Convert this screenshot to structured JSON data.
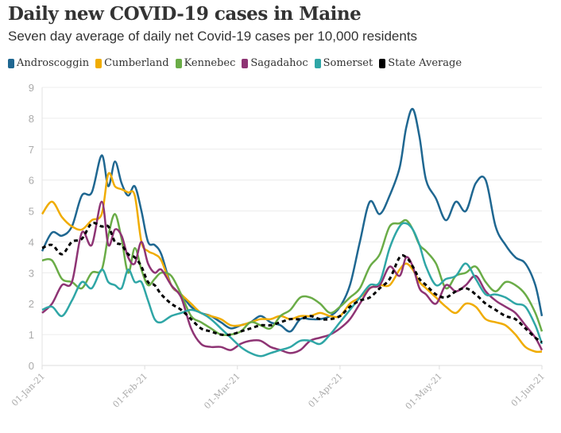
{
  "header": {
    "title": "Daily new COVID-19 cases in Maine",
    "subtitle": "Seven day average of daily net Covid-19 cases per 10,000 residents"
  },
  "chart_data": {
    "type": "line",
    "title": "Daily new COVID-19 cases in Maine",
    "subtitle": "Seven day average of daily net Covid-19 cases per 10,000 residents",
    "xlabel": "",
    "ylabel": "",
    "ylim": [
      0,
      9
    ],
    "yticks": [
      "0",
      "1",
      "2",
      "3",
      "4",
      "5",
      "6",
      "7",
      "8",
      "9"
    ],
    "xlim_days": [
      0,
      151
    ],
    "xticks": [
      {
        "day": 0,
        "label": "01-Jan-21"
      },
      {
        "day": 31,
        "label": "01-Feb-21"
      },
      {
        "day": 59,
        "label": "01-Mar-21"
      },
      {
        "day": 90,
        "label": "01-Apr-21"
      },
      {
        "day": 120,
        "label": "01-May-21"
      },
      {
        "day": 151,
        "label": "01-Jun-21"
      }
    ],
    "grid": true,
    "legend": "top-left",
    "x_days": [
      0,
      3,
      6,
      9,
      12,
      15,
      18,
      20,
      22,
      24,
      26,
      28,
      30,
      32,
      34,
      36,
      39,
      42,
      45,
      48,
      51,
      54,
      57,
      60,
      63,
      66,
      69,
      72,
      75,
      78,
      81,
      84,
      87,
      90,
      93,
      96,
      99,
      102,
      105,
      108,
      110,
      112,
      114,
      116,
      119,
      122,
      125,
      128,
      131,
      134,
      137,
      140,
      143,
      146,
      149,
      151
    ],
    "series": [
      {
        "name": "Androscoggin",
        "color": "#1f6791",
        "dashed": false,
        "values": [
          3.7,
          4.3,
          4.2,
          4.5,
          5.5,
          5.6,
          6.8,
          5.8,
          6.6,
          5.9,
          5.5,
          5.8,
          5.0,
          4.0,
          3.9,
          3.6,
          2.6,
          2.3,
          1.9,
          1.7,
          1.6,
          1.4,
          1.2,
          1.3,
          1.4,
          1.6,
          1.4,
          1.3,
          1.1,
          1.5,
          1.5,
          1.5,
          1.6,
          1.9,
          2.6,
          4.0,
          5.3,
          4.9,
          5.5,
          6.4,
          7.7,
          8.3,
          7.4,
          6.0,
          5.4,
          4.7,
          5.3,
          5.0,
          5.9,
          6.0,
          4.5,
          3.9,
          3.5,
          3.3,
          2.6,
          1.6
        ]
      },
      {
        "name": "Cumberland",
        "color": "#f0ac00",
        "dashed": false,
        "values": [
          4.9,
          5.3,
          4.8,
          4.5,
          4.4,
          4.7,
          4.9,
          6.2,
          5.8,
          5.7,
          5.6,
          5.5,
          4.0,
          3.7,
          3.6,
          3.4,
          2.6,
          2.3,
          2.0,
          1.7,
          1.6,
          1.5,
          1.3,
          1.3,
          1.4,
          1.5,
          1.5,
          1.6,
          1.5,
          1.6,
          1.6,
          1.7,
          1.6,
          1.6,
          2.0,
          2.2,
          2.5,
          2.6,
          2.6,
          3.1,
          3.3,
          3.1,
          2.7,
          2.5,
          2.2,
          1.9,
          1.7,
          2.0,
          1.9,
          1.5,
          1.4,
          1.3,
          1.0,
          0.6,
          0.45,
          0.45
        ]
      },
      {
        "name": "Kennebec",
        "color": "#6aac47",
        "dashed": false,
        "values": [
          3.4,
          3.4,
          2.8,
          2.7,
          2.5,
          3.0,
          3.1,
          4.2,
          4.9,
          4.1,
          3.0,
          3.8,
          3.1,
          2.6,
          2.8,
          3.0,
          2.9,
          2.3,
          1.6,
          1.4,
          1.2,
          1.0,
          1.0,
          1.1,
          1.4,
          1.3,
          1.2,
          1.6,
          1.8,
          2.2,
          2.2,
          2.0,
          1.7,
          1.9,
          2.2,
          2.5,
          3.2,
          3.6,
          4.5,
          4.6,
          4.7,
          4.4,
          3.9,
          3.7,
          3.3,
          2.5,
          2.9,
          3.0,
          3.2,
          2.7,
          2.4,
          2.7,
          2.6,
          2.3,
          1.7,
          1.1
        ]
      },
      {
        "name": "Sagadahoc",
        "color": "#8e3474",
        "dashed": false,
        "values": [
          1.7,
          2.0,
          2.6,
          2.7,
          4.3,
          3.9,
          5.3,
          3.9,
          4.4,
          4.2,
          3.5,
          3.3,
          4.0,
          3.3,
          3.0,
          3.1,
          2.6,
          2.2,
          1.2,
          0.7,
          0.6,
          0.6,
          0.5,
          0.7,
          0.8,
          0.8,
          0.6,
          0.5,
          0.4,
          0.5,
          0.8,
          0.9,
          1.0,
          1.2,
          1.5,
          2.0,
          2.5,
          2.6,
          3.2,
          2.9,
          3.5,
          3.2,
          2.5,
          2.3,
          2.0,
          2.6,
          2.4,
          2.6,
          2.9,
          2.4,
          2.1,
          1.9,
          1.7,
          1.3,
          0.9,
          0.5
        ]
      },
      {
        "name": "Somerset",
        "color": "#2fa6a6",
        "dashed": false,
        "values": [
          1.8,
          1.9,
          1.6,
          2.1,
          2.7,
          2.5,
          3.1,
          2.7,
          2.6,
          2.5,
          3.1,
          2.7,
          2.7,
          2.1,
          1.5,
          1.4,
          1.6,
          1.7,
          1.8,
          1.7,
          1.5,
          1.2,
          0.9,
          0.6,
          0.4,
          0.3,
          0.4,
          0.5,
          0.6,
          0.8,
          0.8,
          0.7,
          1.0,
          1.4,
          1.8,
          2.2,
          2.6,
          2.7,
          3.8,
          4.5,
          4.6,
          4.4,
          3.9,
          3.2,
          2.6,
          2.8,
          2.9,
          3.3,
          2.8,
          2.3,
          2.3,
          2.2,
          2.0,
          1.9,
          1.3,
          0.7
        ]
      },
      {
        "name": "State Average",
        "color": "#000000",
        "dashed": true,
        "values": [
          3.8,
          3.9,
          3.6,
          4.0,
          4.1,
          4.6,
          4.5,
          4.5,
          4.0,
          3.9,
          3.6,
          3.5,
          3.2,
          2.7,
          2.6,
          2.3,
          2.0,
          1.8,
          1.5,
          1.2,
          1.1,
          1.0,
          1.0,
          1.1,
          1.2,
          1.3,
          1.3,
          1.4,
          1.5,
          1.5,
          1.6,
          1.5,
          1.5,
          1.6,
          1.9,
          2.1,
          2.2,
          2.5,
          2.8,
          3.5,
          3.5,
          3.2,
          2.8,
          2.6,
          2.3,
          2.2,
          2.4,
          2.5,
          2.3,
          2.0,
          1.8,
          1.6,
          1.5,
          1.2,
          0.9,
          0.75
        ]
      }
    ]
  }
}
